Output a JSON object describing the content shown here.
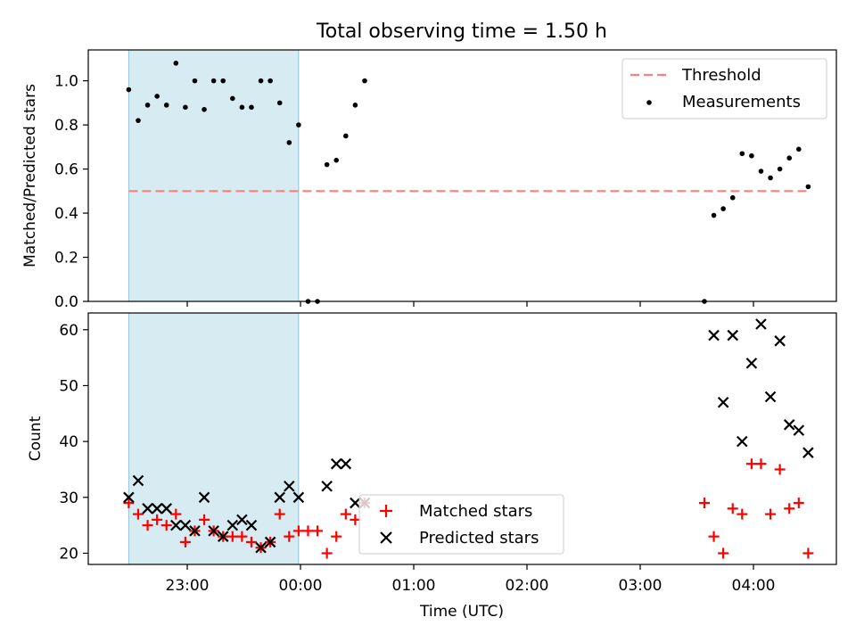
{
  "chart_data": [
    {
      "type": "scatter",
      "title": "Total observing time = 1.50 h",
      "ylabel": "Matched/Predicted stars",
      "xlabel": "",
      "ylim": [
        0,
        1.14
      ],
      "yticks": [
        "0.0",
        "0.2",
        "0.4",
        "0.6",
        "0.8",
        "1.0"
      ],
      "shaded_span": {
        "from": "22:29",
        "to": "23:59"
      },
      "threshold": {
        "name": "Threshold",
        "value": 0.5,
        "from": "22:29",
        "to": "04:29"
      },
      "legend_position": "upper right",
      "series": [
        {
          "name": "Measurements",
          "points": [
            [
              "22:29",
              0.96
            ],
            [
              "22:34",
              0.82
            ],
            [
              "22:39",
              0.89
            ],
            [
              "22:44",
              0.93
            ],
            [
              "22:49",
              0.89
            ],
            [
              "22:54",
              1.08
            ],
            [
              "22:59",
              0.88
            ],
            [
              "23:04",
              1.0
            ],
            [
              "23:09",
              0.87
            ],
            [
              "23:14",
              1.0
            ],
            [
              "23:19",
              1.0
            ],
            [
              "23:24",
              0.92
            ],
            [
              "23:29",
              0.88
            ],
            [
              "23:34",
              0.88
            ],
            [
              "23:39",
              1.0
            ],
            [
              "23:44",
              1.0
            ],
            [
              "23:49",
              0.9
            ],
            [
              "23:54",
              0.72
            ],
            [
              "23:59",
              0.8
            ],
            [
              "00:04",
              0.0
            ],
            [
              "00:09",
              0.0
            ],
            [
              "00:14",
              0.62
            ],
            [
              "00:19",
              0.64
            ],
            [
              "00:24",
              0.75
            ],
            [
              "00:29",
              0.89
            ],
            [
              "00:34",
              1.0
            ],
            [
              "03:34",
              0.0
            ],
            [
              "03:39",
              0.39
            ],
            [
              "03:44",
              0.42
            ],
            [
              "03:49",
              0.47
            ],
            [
              "03:54",
              0.67
            ],
            [
              "03:59",
              0.66
            ],
            [
              "04:04",
              0.59
            ],
            [
              "04:09",
              0.56
            ],
            [
              "04:14",
              0.6
            ],
            [
              "04:19",
              0.65
            ],
            [
              "04:24",
              0.69
            ],
            [
              "04:29",
              0.52
            ]
          ]
        }
      ]
    },
    {
      "type": "scatter",
      "title": "",
      "ylabel": "Count",
      "xlabel": "Time (UTC)",
      "ylim": [
        18,
        63
      ],
      "yticks": [
        "20",
        "30",
        "40",
        "50",
        "60"
      ],
      "xticks": [
        "23:00",
        "00:00",
        "01:00",
        "02:00",
        "03:00",
        "04:00"
      ],
      "shaded_span": {
        "from": "22:29",
        "to": "23:59"
      },
      "legend_position": "lower center",
      "series": [
        {
          "name": "Matched stars",
          "marker": "plus",
          "color": "#ff0000",
          "points": [
            [
              "22:29",
              29
            ],
            [
              "22:34",
              27
            ],
            [
              "22:39",
              25
            ],
            [
              "22:44",
              26
            ],
            [
              "22:49",
              25
            ],
            [
              "22:54",
              27
            ],
            [
              "22:59",
              22
            ],
            [
              "23:04",
              24
            ],
            [
              "23:09",
              26
            ],
            [
              "23:14",
              24
            ],
            [
              "23:19",
              23
            ],
            [
              "23:24",
              23
            ],
            [
              "23:29",
              23
            ],
            [
              "23:34",
              22
            ],
            [
              "23:39",
              21
            ],
            [
              "23:44",
              22
            ],
            [
              "23:49",
              27
            ],
            [
              "23:54",
              23
            ],
            [
              "23:59",
              24
            ],
            [
              "00:04",
              24
            ],
            [
              "00:09",
              24
            ],
            [
              "00:14",
              20
            ],
            [
              "00:19",
              23
            ],
            [
              "00:24",
              27
            ],
            [
              "00:29",
              26
            ],
            [
              "00:34",
              29
            ],
            [
              "03:34",
              29
            ],
            [
              "03:39",
              23
            ],
            [
              "03:44",
              20
            ],
            [
              "03:49",
              28
            ],
            [
              "03:54",
              27
            ],
            [
              "03:59",
              36
            ],
            [
              "04:04",
              36
            ],
            [
              "04:09",
              27
            ],
            [
              "04:14",
              35
            ],
            [
              "04:19",
              28
            ],
            [
              "04:24",
              29
            ],
            [
              "04:29",
              20
            ]
          ]
        },
        {
          "name": "Predicted stars",
          "marker": "x",
          "color": "#000000",
          "points": [
            [
              "22:29",
              30
            ],
            [
              "22:34",
              33
            ],
            [
              "22:39",
              28
            ],
            [
              "22:44",
              28
            ],
            [
              "22:49",
              28
            ],
            [
              "22:54",
              25
            ],
            [
              "22:59",
              25
            ],
            [
              "23:04",
              24
            ],
            [
              "23:09",
              30
            ],
            [
              "23:14",
              24
            ],
            [
              "23:19",
              23
            ],
            [
              "23:24",
              25
            ],
            [
              "23:29",
              26
            ],
            [
              "23:34",
              25
            ],
            [
              "23:39",
              21
            ],
            [
              "23:44",
              22
            ],
            [
              "23:49",
              30
            ],
            [
              "23:54",
              32
            ],
            [
              "23:59",
              30
            ],
            [
              "00:14",
              32
            ],
            [
              "00:19",
              36
            ],
            [
              "00:24",
              36
            ],
            [
              "00:29",
              29
            ],
            [
              "00:34",
              29
            ],
            [
              "03:39",
              59
            ],
            [
              "03:44",
              47
            ],
            [
              "03:49",
              59
            ],
            [
              "03:54",
              40
            ],
            [
              "03:59",
              54
            ],
            [
              "04:04",
              61
            ],
            [
              "04:09",
              48
            ],
            [
              "04:14",
              58
            ],
            [
              "04:19",
              43
            ],
            [
              "04:24",
              42
            ],
            [
              "04:29",
              38
            ]
          ]
        }
      ]
    }
  ]
}
